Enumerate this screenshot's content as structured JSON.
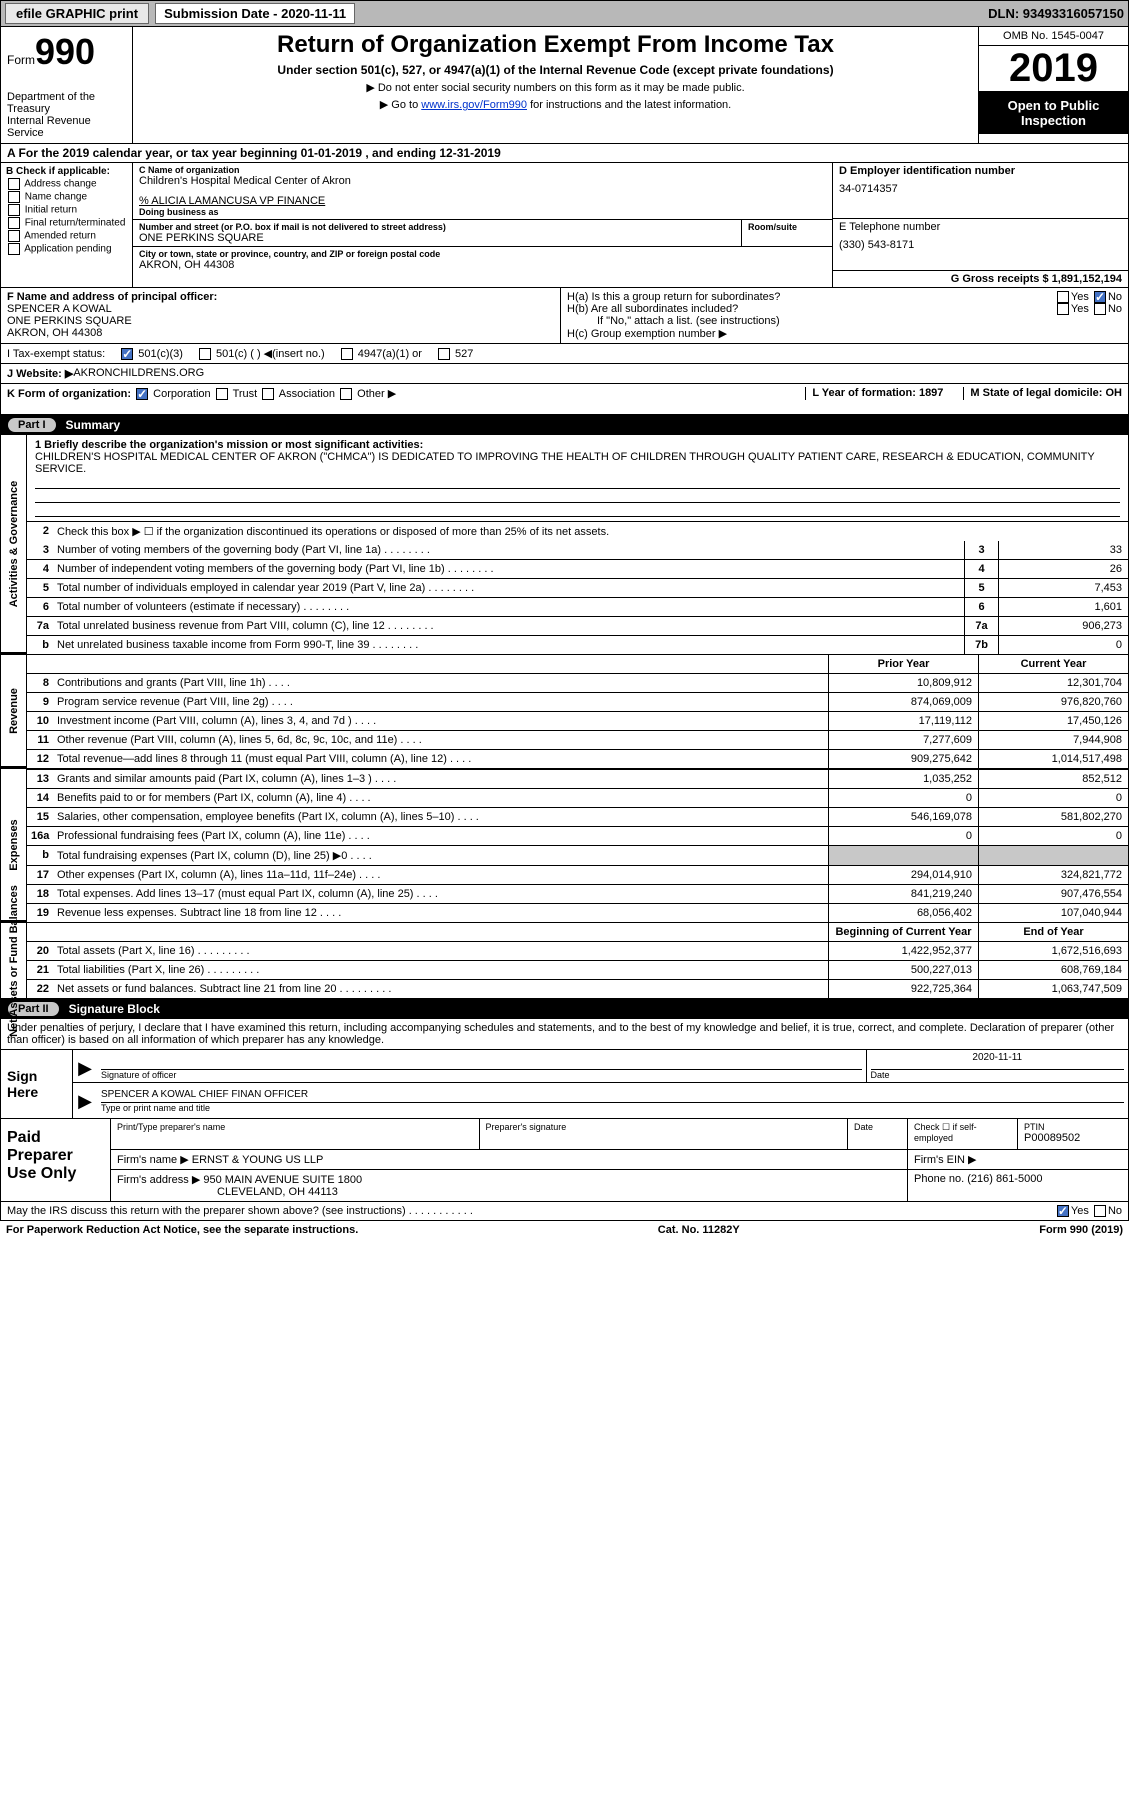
{
  "topbar": {
    "efile": "efile GRAPHIC print",
    "submission_label": "Submission Date - 2020-11-11",
    "dln": "DLN: 93493316057150"
  },
  "header": {
    "form_word": "Form",
    "form_num": "990",
    "dept": "Department of the Treasury\nInternal Revenue Service",
    "title": "Return of Organization Exempt From Income Tax",
    "subtitle": "Under section 501(c), 527, or 4947(a)(1) of the Internal Revenue Code (except private foundations)",
    "note1": "▶ Do not enter social security numbers on this form as it may be made public.",
    "note2_pre": "▶ Go to ",
    "note2_link": "www.irs.gov/Form990",
    "note2_post": " for instructions and the latest information.",
    "omb": "OMB No. 1545-0047",
    "year": "2019",
    "public": "Open to Public Inspection"
  },
  "lineA": "A   For the 2019 calendar year, or tax year beginning 01-01-2019    , and ending 12-31-2019",
  "colB": {
    "hdr": "B Check if applicable:",
    "opts": [
      "Address change",
      "Name change",
      "Initial return",
      "Final return/terminated",
      "Amended return",
      "Application pending"
    ]
  },
  "orgC": {
    "lbl": "C Name of organization",
    "name": "Children's Hospital Medical Center of Akron",
    "care": "% ALICIA LAMANCUSA VP FINANCE",
    "dba_lbl": "Doing business as",
    "addr_lbl": "Number and street (or P.O. box if mail is not delivered to street address)",
    "room_lbl": "Room/suite",
    "addr": "ONE PERKINS SQUARE",
    "city_lbl": "City or town, state or province, country, and ZIP or foreign postal code",
    "city": "AKRON, OH  44308"
  },
  "colD": {
    "ein_lbl": "D Employer identification number",
    "ein": "34-0714357",
    "tel_lbl": "E Telephone number",
    "tel": "(330) 543-8171",
    "gross_lbl": "G Gross receipts $",
    "gross": "1,891,152,194"
  },
  "principal": {
    "f_lbl": "F  Name and address of principal officer:",
    "name": "SPENCER A KOWAL",
    "addr1": "ONE PERKINS SQUARE",
    "addr2": "AKRON, OH  44308",
    "ha": "H(a)  Is this a group return for subordinates?",
    "hb": "H(b)  Are all subordinates included?",
    "hb_note": "If \"No,\" attach a list. (see instructions)",
    "hc": "H(c)  Group exemption number ▶"
  },
  "taxrow": {
    "lbl": "I    Tax-exempt status:",
    "o1": "501(c)(3)",
    "o2": "501(c) (  ) ◀(insert no.)",
    "o3": "4947(a)(1) or",
    "o4": "527"
  },
  "website": {
    "lbl": "J   Website: ▶",
    "val": " AKRONCHILDRENS.ORG"
  },
  "kform": {
    "lbl": "K Form of organization:",
    "corp": "Corporation",
    "trust": "Trust",
    "assoc": "Association",
    "other": "Other ▶",
    "l": "L Year of formation: 1897",
    "m": "M State of legal domicile: OH"
  },
  "part1": {
    "pill": "Part I",
    "title": "Summary"
  },
  "side": {
    "act": "Activities & Governance",
    "rev": "Revenue",
    "exp": "Expenses",
    "net": "Net Assets or Fund Balances"
  },
  "mission": {
    "lbl": "1 Briefly describe the organization's mission or most significant activities:",
    "text": "CHILDREN'S HOSPITAL MEDICAL CENTER OF AKRON (\"CHMCA\") IS DEDICATED TO IMPROVING THE HEALTH OF CHILDREN THROUGH QUALITY PATIENT CARE, RESEARCH & EDUCATION, COMMUNITY SERVICE."
  },
  "gov": {
    "l2": "Check this box ▶ ☐  if the organization discontinued its operations or disposed of more than 25% of its net assets.",
    "rows": [
      {
        "n": "3",
        "d": "Number of voting members of the governing body (Part VI, line 1a)",
        "b": "3",
        "v": "33"
      },
      {
        "n": "4",
        "d": "Number of independent voting members of the governing body (Part VI, line 1b)",
        "b": "4",
        "v": "26"
      },
      {
        "n": "5",
        "d": "Total number of individuals employed in calendar year 2019 (Part V, line 2a)",
        "b": "5",
        "v": "7,453"
      },
      {
        "n": "6",
        "d": "Total number of volunteers (estimate if necessary)",
        "b": "6",
        "v": "1,601"
      },
      {
        "n": "7a",
        "d": "Total unrelated business revenue from Part VIII, column (C), line 12",
        "b": "7a",
        "v": "906,273"
      },
      {
        "n": "b",
        "d": "Net unrelated business taxable income from Form 990-T, line 39",
        "b": "7b",
        "v": "0"
      }
    ]
  },
  "hdrcols": {
    "prior": "Prior Year",
    "curr": "Current Year"
  },
  "revenue": [
    {
      "n": "8",
      "d": "Contributions and grants (Part VIII, line 1h)",
      "p": "10,809,912",
      "c": "12,301,704"
    },
    {
      "n": "9",
      "d": "Program service revenue (Part VIII, line 2g)",
      "p": "874,069,009",
      "c": "976,820,760"
    },
    {
      "n": "10",
      "d": "Investment income (Part VIII, column (A), lines 3, 4, and 7d )",
      "p": "17,119,112",
      "c": "17,450,126"
    },
    {
      "n": "11",
      "d": "Other revenue (Part VIII, column (A), lines 5, 6d, 8c, 9c, 10c, and 11e)",
      "p": "7,277,609",
      "c": "7,944,908"
    },
    {
      "n": "12",
      "d": "Total revenue—add lines 8 through 11 (must equal Part VIII, column (A), line 12)",
      "p": "909,275,642",
      "c": "1,014,517,498"
    }
  ],
  "expenses": [
    {
      "n": "13",
      "d": "Grants and similar amounts paid (Part IX, column (A), lines 1–3 )",
      "p": "1,035,252",
      "c": "852,512"
    },
    {
      "n": "14",
      "d": "Benefits paid to or for members (Part IX, column (A), line 4)",
      "p": "0",
      "c": "0"
    },
    {
      "n": "15",
      "d": "Salaries, other compensation, employee benefits (Part IX, column (A), lines 5–10)",
      "p": "546,169,078",
      "c": "581,802,270"
    },
    {
      "n": "16a",
      "d": "Professional fundraising fees (Part IX, column (A), line 11e)",
      "p": "0",
      "c": "0"
    },
    {
      "n": "b",
      "d": "Total fundraising expenses (Part IX, column (D), line 25) ▶0",
      "p": "",
      "c": "",
      "shaded": true
    },
    {
      "n": "17",
      "d": "Other expenses (Part IX, column (A), lines 11a–11d, 11f–24e)",
      "p": "294,014,910",
      "c": "324,821,772"
    },
    {
      "n": "18",
      "d": "Total expenses. Add lines 13–17 (must equal Part IX, column (A), line 25)",
      "p": "841,219,240",
      "c": "907,476,554"
    },
    {
      "n": "19",
      "d": "Revenue less expenses. Subtract line 18 from line 12",
      "p": "68,056,402",
      "c": "107,040,944"
    }
  ],
  "netcols": {
    "beg": "Beginning of Current Year",
    "end": "End of Year"
  },
  "net": [
    {
      "n": "20",
      "d": "Total assets (Part X, line 16)",
      "p": "1,422,952,377",
      "c": "1,672,516,693"
    },
    {
      "n": "21",
      "d": "Total liabilities (Part X, line 26)",
      "p": "500,227,013",
      "c": "608,769,184"
    },
    {
      "n": "22",
      "d": "Net assets or fund balances. Subtract line 21 from line 20",
      "p": "922,725,364",
      "c": "1,063,747,509"
    }
  ],
  "part2": {
    "pill": "Part II",
    "title": "Signature Block"
  },
  "penalty": "Under penalties of perjury, I declare that I have examined this return, including accompanying schedules and statements, and to the best of my knowledge and belief, it is true, correct, and complete. Declaration of preparer (other than officer) is based on all information of which preparer has any knowledge.",
  "sign": {
    "here": "Sign Here",
    "sig_officer": "Signature of officer",
    "date": "Date",
    "date_val": "2020-11-11",
    "name": "SPENCER A KOWAL  CHIEF FINAN OFFICER",
    "type_lbl": "Type or print name and title"
  },
  "prep": {
    "hdr": "Paid Preparer Use Only",
    "pn_lbl": "Print/Type preparer's name",
    "ps_lbl": "Preparer's signature",
    "dt_lbl": "Date",
    "chk_lbl": "Check ☐ if self-employed",
    "ptin_lbl": "PTIN",
    "ptin": "P00089502",
    "firm_lbl": "Firm's name    ▶",
    "firm": "ERNST & YOUNG US LLP",
    "ein_lbl": "Firm's EIN ▶",
    "addr_lbl": "Firm's address ▶",
    "addr1": "950 MAIN AVENUE SUITE 1800",
    "addr2": "CLEVELAND, OH  44113",
    "phone_lbl": "Phone no.",
    "phone": "(216) 861-5000"
  },
  "footer": {
    "discuss": "May the IRS discuss this return with the preparer shown above? (see instructions)",
    "pra": "For Paperwork Reduction Act Notice, see the separate instructions.",
    "cat": "Cat. No. 11282Y",
    "form": "Form 990 (2019)"
  }
}
